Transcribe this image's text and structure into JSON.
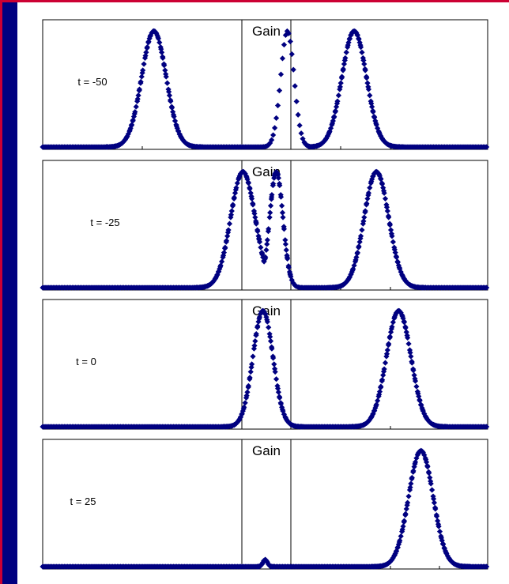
{
  "chart_data": [
    {
      "type": "scatter",
      "title": "",
      "annotation": "t = -50",
      "gain_label": "Gain",
      "xlabel": "",
      "ylabel": "",
      "xlim": [
        -200,
        200
      ],
      "ylim": [
        0,
        1.05
      ],
      "series": [
        {
          "peaks": [
            {
              "center": -100,
              "sigma": 11,
              "amplitude": 1.0,
              "step": 1.0
            },
            {
              "center": 20,
              "sigma": 6,
              "amplitude": 1.0,
              "step": 2.8
            },
            {
              "center": 80,
              "sigma": 11,
              "amplitude": 1.0,
              "step": 1.0
            }
          ]
        }
      ]
    },
    {
      "type": "scatter",
      "title": "",
      "annotation": "t = -25",
      "gain_label": "Gain",
      "xlabel": "",
      "ylabel": "",
      "xlim": [
        -200,
        200
      ],
      "ylim": [
        0,
        1.05
      ],
      "series": [
        {
          "peaks": [
            {
              "center": -20,
              "sigma": 11,
              "amplitude": 1.0,
              "step": 1.0
            },
            {
              "center": 10,
              "sigma": 6,
              "amplitude": 1.0,
              "step": 2.8
            },
            {
              "center": 100,
              "sigma": 11,
              "amplitude": 1.0,
              "step": 1.0
            }
          ]
        }
      ]
    },
    {
      "type": "scatter",
      "title": "",
      "annotation": "t = 0",
      "gain_label": "Gain",
      "xlabel": "",
      "ylabel": "",
      "xlim": [
        -200,
        200
      ],
      "ylim": [
        0,
        1.05
      ],
      "series": [
        {
          "peaks": [
            {
              "center": -2,
              "sigma": 9,
              "amplitude": 1.0,
              "step": 1.0
            },
            {
              "center": 120,
              "sigma": 11,
              "amplitude": 1.0,
              "step": 1.0
            }
          ]
        }
      ]
    },
    {
      "type": "scatter",
      "title": "",
      "annotation": "t = 25",
      "gain_label": "Gain",
      "xlabel": "",
      "ylabel": "",
      "xlim": [
        -200,
        200
      ],
      "ylim": [
        0,
        1.05
      ],
      "series": [
        {
          "peaks": [
            {
              "center": 0,
              "sigma": 2,
              "amplitude": 0.06,
              "step": 1.0
            },
            {
              "center": 140,
              "sigma": 11,
              "amplitude": 1.0,
              "step": 1.0
            }
          ]
        }
      ]
    }
  ],
  "colors": {
    "background": "#000080",
    "border_accent": "#cc0033",
    "panel": "#ffffff",
    "marker": "#000080",
    "axis": "#000000"
  }
}
